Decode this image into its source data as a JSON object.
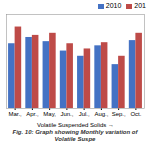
{
  "chart_data": {
    "type": "bar",
    "xlabel": "Volatile Suspended Solids",
    "caption": "Fig. 10: Graph showing Monthly variation of Volatile Suspe",
    "categories": [
      "Mar.,",
      "Apr.,",
      "May,",
      "Jun.,",
      "Jul.,",
      "Aug.,",
      "Sep.,",
      "Oct."
    ],
    "series": [
      {
        "name": "2010",
        "color": "#4472C4",
        "values": [
          62,
          68,
          64,
          55,
          50,
          60,
          42,
          65
        ]
      },
      {
        "name": "201",
        "color": "#BE4B48",
        "values": [
          78,
          70,
          72,
          62,
          57,
          63,
          50,
          72
        ]
      }
    ],
    "ylim": [
      0,
      90
    ],
    "tick_labels": "x",
    "grid": false,
    "legend": "upper right"
  }
}
